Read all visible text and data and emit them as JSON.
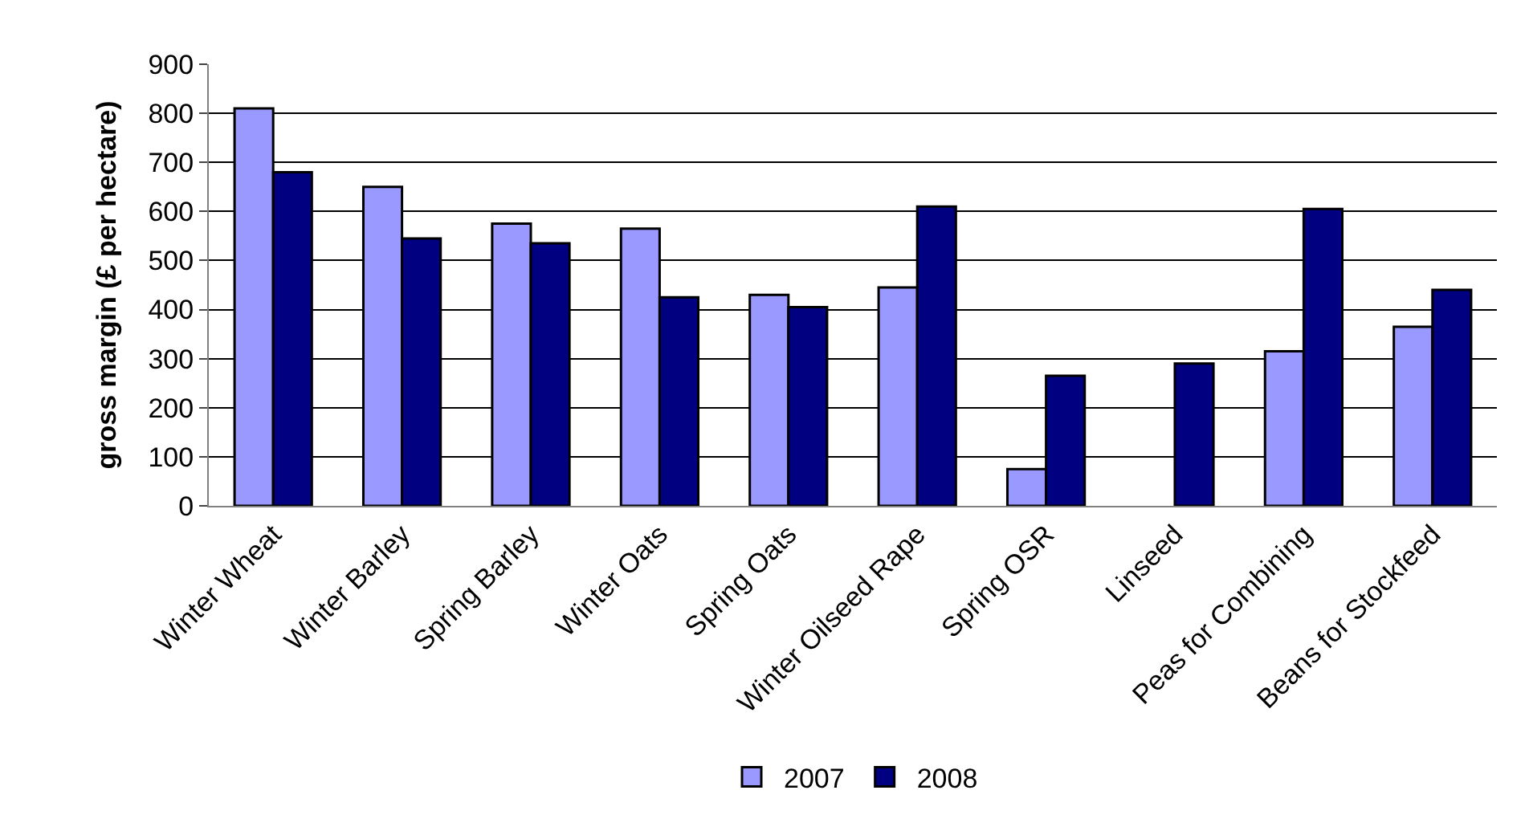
{
  "chart_data": {
    "type": "bar",
    "ylabel": "gross margin (£ per hectare)",
    "categories": [
      "Winter Wheat",
      "Winter Barley",
      "Spring Barley",
      "Winter Oats",
      "Spring Oats",
      "Winter Oilseed Rape",
      "Spring OSR",
      "Linseed",
      "Peas for Combining",
      "Beans for Stockfeed"
    ],
    "series": [
      {
        "name": "2007",
        "color": "#9999ff",
        "values": [
          810,
          650,
          575,
          565,
          430,
          445,
          75,
          null,
          315,
          365
        ]
      },
      {
        "name": "2008",
        "color": "#000080",
        "values": [
          680,
          545,
          535,
          425,
          405,
          610,
          265,
          290,
          605,
          440
        ]
      }
    ],
    "ylim": [
      0,
      900
    ],
    "yticks": [
      0,
      100,
      200,
      300,
      400,
      500,
      600,
      700,
      800,
      900
    ],
    "grid": "y",
    "legend": "bottom"
  }
}
